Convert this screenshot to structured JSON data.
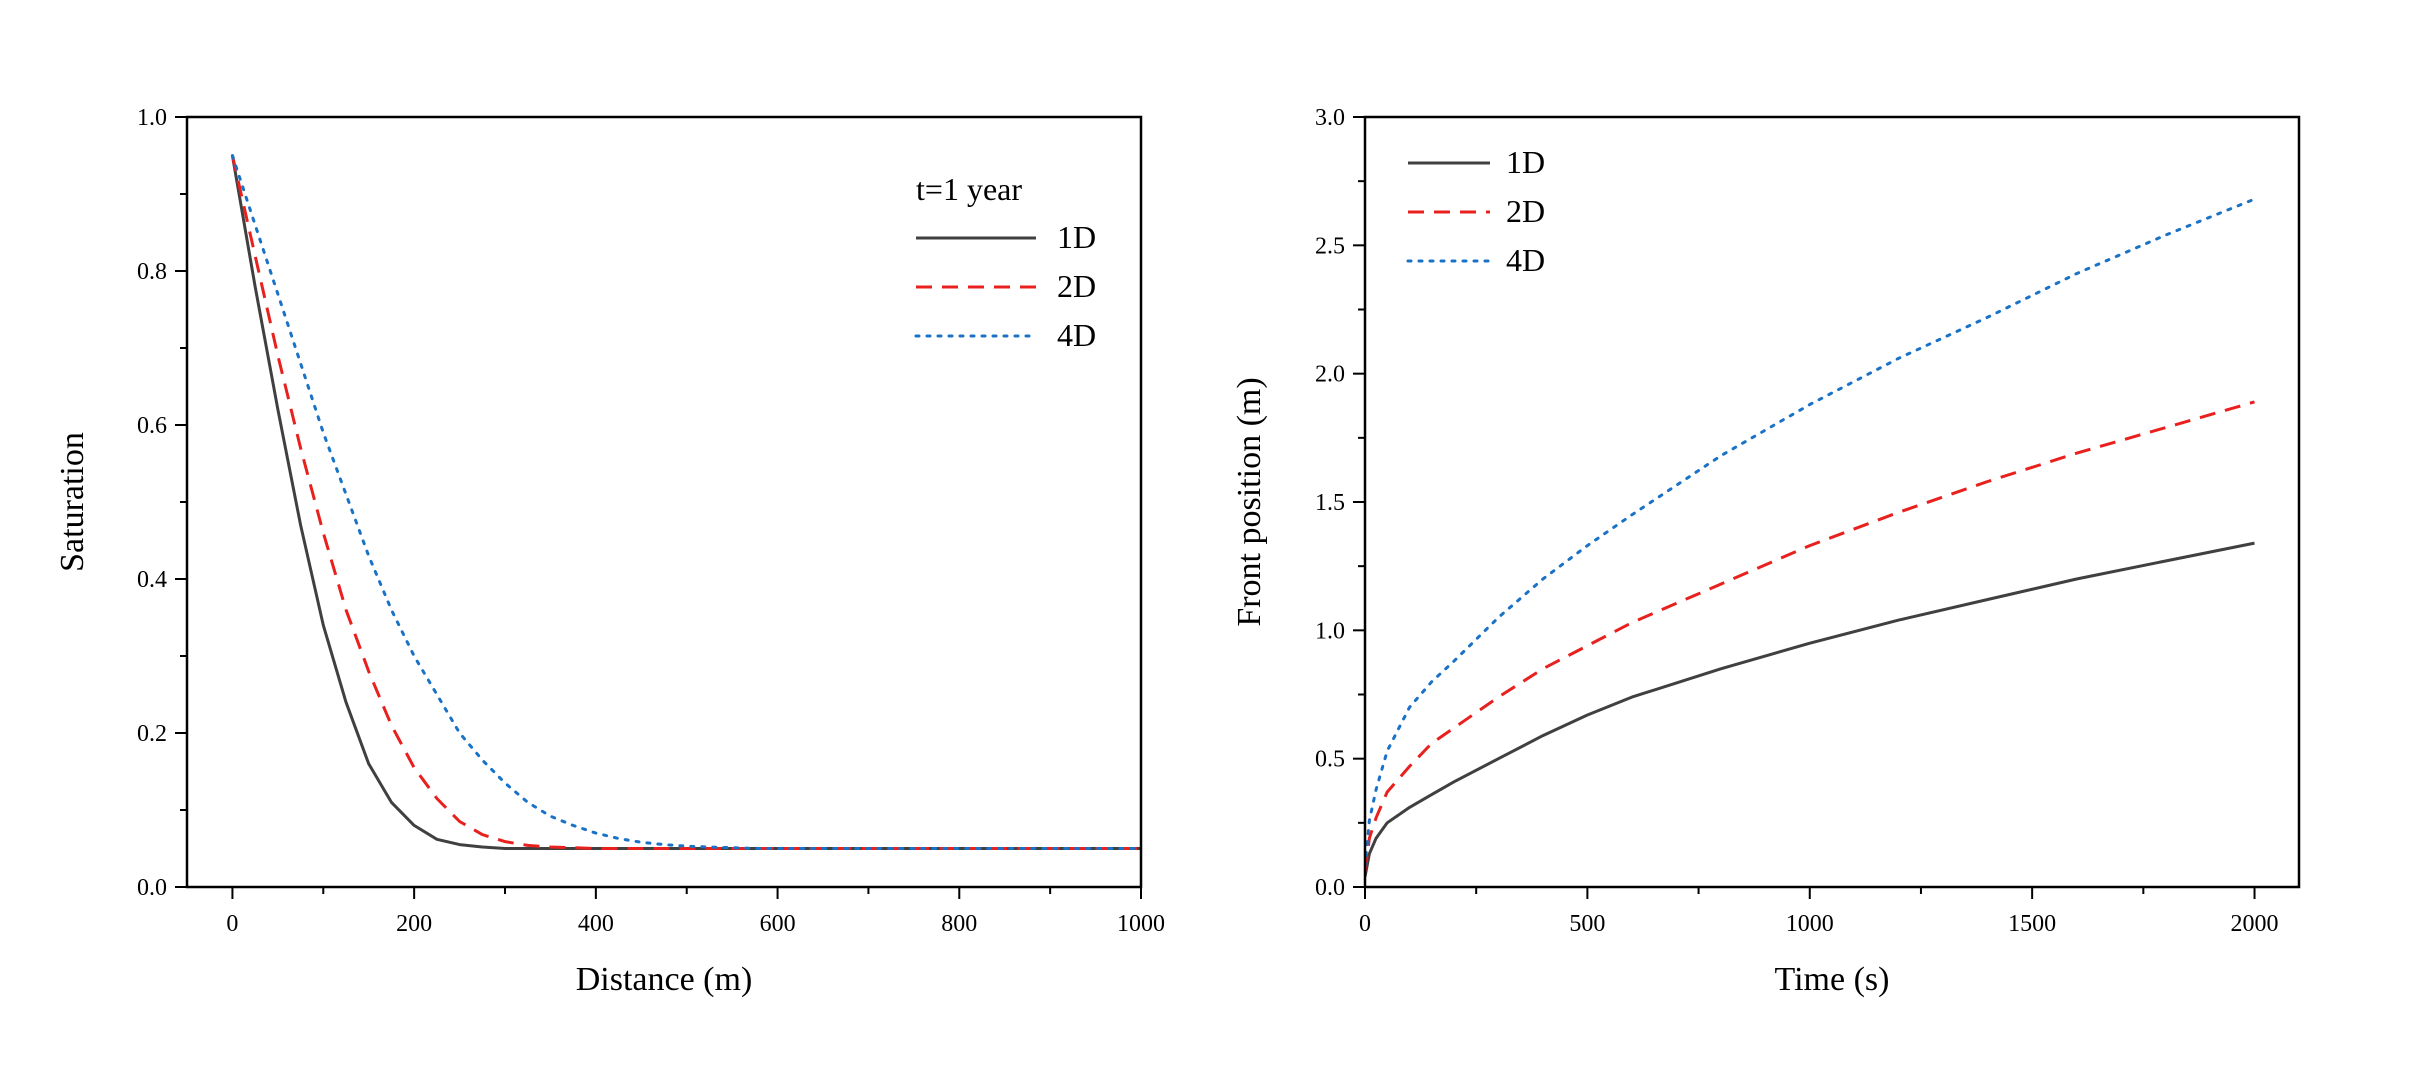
{
  "chart_data": [
    {
      "id": "saturation",
      "type": "line",
      "title": "",
      "xlabel": "Distance (m)",
      "ylabel": "Saturation",
      "xlim": [
        -50,
        1000
      ],
      "ylim": [
        0,
        1.0
      ],
      "xticks": [
        0,
        200,
        400,
        600,
        800,
        1000
      ],
      "xtick_labels": [
        "0",
        "200",
        "400",
        "600",
        "800",
        "1000"
      ],
      "yticks": [
        0,
        0.2,
        0.4,
        0.6,
        0.8,
        1.0
      ],
      "ytick_labels": [
        "0.0",
        "0.2",
        "0.4",
        "0.6",
        "0.8",
        "1.0"
      ],
      "legend_title": "t=1 year",
      "legend_position": "top-right",
      "grid": false,
      "x": [
        0,
        25,
        50,
        75,
        100,
        125,
        150,
        175,
        200,
        225,
        250,
        275,
        300,
        325,
        350,
        375,
        400,
        425,
        450,
        475,
        500,
        525,
        550,
        575,
        600,
        650,
        700,
        800,
        900,
        1000
      ],
      "series": [
        {
          "name": "1D",
          "color": "#404040",
          "dash": "solid",
          "values": [
            0.95,
            0.78,
            0.62,
            0.47,
            0.34,
            0.24,
            0.16,
            0.11,
            0.08,
            0.062,
            0.055,
            0.052,
            0.05,
            0.05,
            0.05,
            0.05,
            0.05,
            0.05,
            0.05,
            0.05,
            0.05,
            0.05,
            0.05,
            0.05,
            0.05,
            0.05,
            0.05,
            0.05,
            0.05,
            0.05
          ]
        },
        {
          "name": "2D",
          "color": "#e8201e",
          "dash": "dashed",
          "values": [
            0.95,
            0.82,
            0.69,
            0.57,
            0.46,
            0.36,
            0.28,
            0.21,
            0.155,
            0.115,
            0.085,
            0.068,
            0.059,
            0.054,
            0.052,
            0.051,
            0.05,
            0.05,
            0.05,
            0.05,
            0.05,
            0.05,
            0.05,
            0.05,
            0.05,
            0.05,
            0.05,
            0.05,
            0.05,
            0.05
          ]
        },
        {
          "name": "4D",
          "color": "#1a72c6",
          "dash": "dotted",
          "values": [
            0.95,
            0.86,
            0.77,
            0.68,
            0.59,
            0.51,
            0.43,
            0.36,
            0.3,
            0.25,
            0.2,
            0.165,
            0.135,
            0.11,
            0.092,
            0.08,
            0.07,
            0.063,
            0.058,
            0.055,
            0.053,
            0.052,
            0.051,
            0.05,
            0.05,
            0.05,
            0.05,
            0.05,
            0.05,
            0.05
          ]
        }
      ]
    },
    {
      "id": "front",
      "type": "line",
      "title": "",
      "xlabel": "Time (s)",
      "ylabel": "Front position (m)",
      "xlim": [
        0,
        2100
      ],
      "ylim": [
        0,
        3.0
      ],
      "xticks": [
        0,
        500,
        1000,
        1500,
        2000
      ],
      "xtick_labels": [
        "0",
        "500",
        "1000",
        "1500",
        "2000"
      ],
      "yticks": [
        0,
        0.5,
        1.0,
        1.5,
        2.0,
        2.5,
        3.0
      ],
      "ytick_labels": [
        "0.0",
        "0.5",
        "1.0",
        "1.5",
        "2.0",
        "2.5",
        "3.0"
      ],
      "legend_title": "",
      "legend_position": "top-left",
      "grid": false,
      "x": [
        0,
        10,
        25,
        50,
        100,
        150,
        200,
        300,
        400,
        500,
        600,
        800,
        1000,
        1200,
        1400,
        1600,
        1800,
        2000
      ],
      "series": [
        {
          "name": "1D",
          "color": "#404040",
          "dash": "solid",
          "values": [
            0.04,
            0.13,
            0.19,
            0.25,
            0.31,
            0.36,
            0.41,
            0.5,
            0.59,
            0.67,
            0.74,
            0.85,
            0.95,
            1.04,
            1.12,
            1.2,
            1.27,
            1.34
          ]
        },
        {
          "name": "2D",
          "color": "#e8201e",
          "dash": "dashed",
          "values": [
            0.06,
            0.19,
            0.27,
            0.37,
            0.47,
            0.56,
            0.62,
            0.74,
            0.85,
            0.94,
            1.03,
            1.18,
            1.33,
            1.46,
            1.58,
            1.69,
            1.79,
            1.89
          ]
        },
        {
          "name": "4D",
          "color": "#1a72c6",
          "dash": "dotted",
          "values": [
            0.08,
            0.26,
            0.38,
            0.53,
            0.7,
            0.8,
            0.88,
            1.05,
            1.2,
            1.33,
            1.45,
            1.68,
            1.88,
            2.06,
            2.22,
            2.39,
            2.54,
            2.68
          ]
        }
      ]
    }
  ]
}
